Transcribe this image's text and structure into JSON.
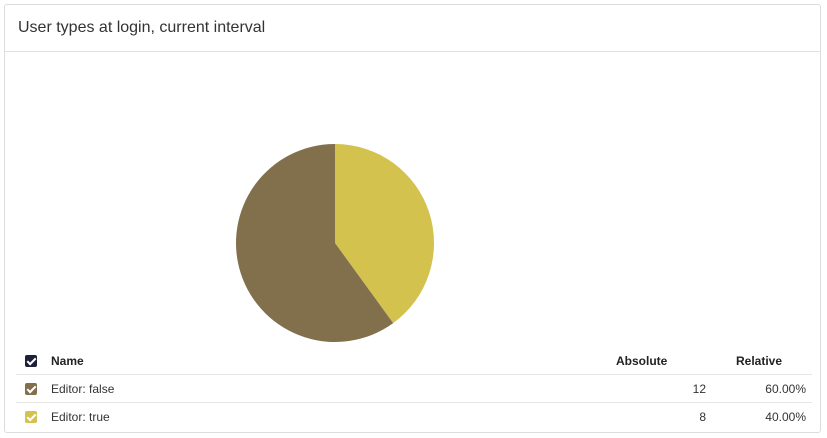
{
  "panel": {
    "title": "User types at login, current interval"
  },
  "table": {
    "headers": {
      "name": "Name",
      "absolute": "Absolute",
      "relative": "Relative"
    },
    "header_checkbox_color": "#1f1f3a",
    "rows": [
      {
        "label": "Editor: false",
        "absolute": "12",
        "relative": "60.00%",
        "color": "#82704d"
      },
      {
        "label": "Editor: true",
        "absolute": "8",
        "relative": "40.00%",
        "color": "#d3c24d"
      }
    ]
  },
  "chart_data": {
    "type": "pie",
    "categories": [
      "Editor: false",
      "Editor: true"
    ],
    "values": [
      12,
      8
    ],
    "colors": [
      "#82704d",
      "#d3c24d"
    ]
  }
}
